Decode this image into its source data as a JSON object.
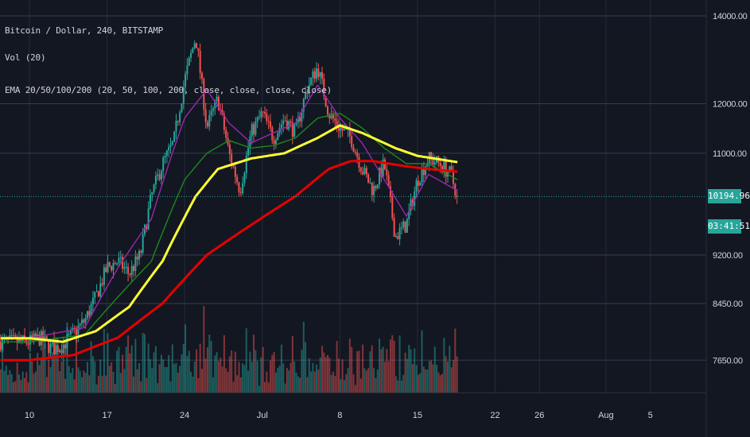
{
  "legend": {
    "symbol": "Bitcoin / Dollar, 240, BITSTAMP",
    "volume": "Vol (20)",
    "ema": "EMA 20/50/100/200 (20, 50, 100, 200, close, close, close, close)"
  },
  "last_price_label": "10194.96",
  "countdown_label": "03:41:51",
  "colors": {
    "background": "#131722",
    "grid": "#363c4e",
    "text": "#d1d4dc",
    "up": "#26a69a",
    "down": "#ef5350",
    "ema20": "#9c27b0",
    "ema50": "#1b8a1b",
    "ema100": "#ffff33",
    "ema200": "#e60000",
    "last_price": "#26a69a"
  },
  "chart_data": {
    "type": "candlestick",
    "title": "Bitcoin / Dollar, 240, BITSTAMP",
    "y_ticks": [
      14000,
      12000,
      11000,
      9200,
      8450,
      7650
    ],
    "x_ticks": [
      "10",
      "17",
      "24",
      "Jul",
      "8",
      "15",
      "22",
      "26",
      "Aug",
      "5"
    ],
    "y_scale": "log",
    "ylim": [
      7300,
      14600
    ],
    "last_price": 10194.96,
    "grid": true,
    "price_anchors": [
      {
        "d": 0,
        "p": 7900
      },
      {
        "d": 1,
        "p": 7950
      },
      {
        "d": 2,
        "p": 7800
      },
      {
        "d": 3,
        "p": 7850
      },
      {
        "d": 5,
        "p": 8200
      },
      {
        "d": 6,
        "p": 8550
      },
      {
        "d": 7,
        "p": 9000
      },
      {
        "d": 8,
        "p": 9100
      },
      {
        "d": 9,
        "p": 8900
      },
      {
        "d": 10,
        "p": 9200
      },
      {
        "d": 11,
        "p": 10200
      },
      {
        "d": 12,
        "p": 10800
      },
      {
        "d": 13,
        "p": 11200
      },
      {
        "d": 14,
        "p": 12500
      },
      {
        "d": 15,
        "p": 13500
      },
      {
        "d": 16,
        "p": 11500
      },
      {
        "d": 17,
        "p": 12100
      },
      {
        "d": 18,
        "p": 11000
      },
      {
        "d": 19,
        "p": 10300
      },
      {
        "d": 20,
        "p": 11400
      },
      {
        "d": 21,
        "p": 11800
      },
      {
        "d": 22,
        "p": 11300
      },
      {
        "d": 23,
        "p": 11700
      },
      {
        "d": 24,
        "p": 11400
      },
      {
        "d": 25,
        "p": 12300
      },
      {
        "d": 26,
        "p": 12800
      },
      {
        "d": 27,
        "p": 11800
      },
      {
        "d": 28,
        "p": 11500
      },
      {
        "d": 29,
        "p": 11300
      },
      {
        "d": 30,
        "p": 10700
      },
      {
        "d": 31,
        "p": 10300
      },
      {
        "d": 32,
        "p": 10800
      },
      {
        "d": 33,
        "p": 9500
      },
      {
        "d": 34,
        "p": 9700
      },
      {
        "d": 35,
        "p": 10500
      },
      {
        "d": 36,
        "p": 10900
      },
      {
        "d": 37,
        "p": 10800
      },
      {
        "d": 38,
        "p": 10600
      },
      {
        "d": 38.6,
        "p": 10195
      }
    ],
    "series": [
      {
        "name": "EMA 20",
        "anchors": [
          {
            "d": 0,
            "p": 7950
          },
          {
            "d": 5,
            "p": 8100
          },
          {
            "d": 8,
            "p": 9000
          },
          {
            "d": 11,
            "p": 9800
          },
          {
            "d": 14,
            "p": 11700
          },
          {
            "d": 16,
            "p": 12300
          },
          {
            "d": 18,
            "p": 11600
          },
          {
            "d": 20,
            "p": 11200
          },
          {
            "d": 22,
            "p": 11400
          },
          {
            "d": 24,
            "p": 11600
          },
          {
            "d": 26,
            "p": 12400
          },
          {
            "d": 28,
            "p": 11700
          },
          {
            "d": 30,
            "p": 11200
          },
          {
            "d": 32,
            "p": 10500
          },
          {
            "d": 34,
            "p": 9850
          },
          {
            "d": 36,
            "p": 10600
          },
          {
            "d": 38.6,
            "p": 10300
          }
        ]
      },
      {
        "name": "EMA 50",
        "anchors": [
          {
            "d": 0,
            "p": 7900
          },
          {
            "d": 5,
            "p": 8000
          },
          {
            "d": 8,
            "p": 8550
          },
          {
            "d": 11,
            "p": 9100
          },
          {
            "d": 14,
            "p": 10500
          },
          {
            "d": 16,
            "p": 11000
          },
          {
            "d": 18,
            "p": 11250
          },
          {
            "d": 20,
            "p": 11100
          },
          {
            "d": 22,
            "p": 11150
          },
          {
            "d": 24,
            "p": 11300
          },
          {
            "d": 26,
            "p": 11700
          },
          {
            "d": 28,
            "p": 11800
          },
          {
            "d": 30,
            "p": 11500
          },
          {
            "d": 32,
            "p": 11100
          },
          {
            "d": 34,
            "p": 10800
          },
          {
            "d": 36,
            "p": 10800
          },
          {
            "d": 38.6,
            "p": 10500
          }
        ]
      },
      {
        "name": "EMA 100",
        "anchors": [
          {
            "d": 0,
            "p": 7950
          },
          {
            "d": 3,
            "p": 7900
          },
          {
            "d": 6,
            "p": 8050
          },
          {
            "d": 9,
            "p": 8400
          },
          {
            "d": 12,
            "p": 9100
          },
          {
            "d": 15,
            "p": 10200
          },
          {
            "d": 17,
            "p": 10700
          },
          {
            "d": 20,
            "p": 10900
          },
          {
            "d": 23,
            "p": 11000
          },
          {
            "d": 26,
            "p": 11300
          },
          {
            "d": 28,
            "p": 11550
          },
          {
            "d": 30,
            "p": 11400
          },
          {
            "d": 33,
            "p": 11100
          },
          {
            "d": 35,
            "p": 10950
          },
          {
            "d": 38.6,
            "p": 10830
          }
        ]
      },
      {
        "name": "EMA 200",
        "anchors": [
          {
            "d": 0,
            "p": 7650
          },
          {
            "d": 4,
            "p": 7720
          },
          {
            "d": 8,
            "p": 7960
          },
          {
            "d": 12,
            "p": 8450
          },
          {
            "d": 16,
            "p": 9200
          },
          {
            "d": 20,
            "p": 9700
          },
          {
            "d": 24,
            "p": 10200
          },
          {
            "d": 27,
            "p": 10700
          },
          {
            "d": 29,
            "p": 10850
          },
          {
            "d": 31,
            "p": 10850
          },
          {
            "d": 34,
            "p": 10750
          },
          {
            "d": 36,
            "p": 10700
          },
          {
            "d": 38.6,
            "p": 10650
          }
        ]
      }
    ]
  }
}
